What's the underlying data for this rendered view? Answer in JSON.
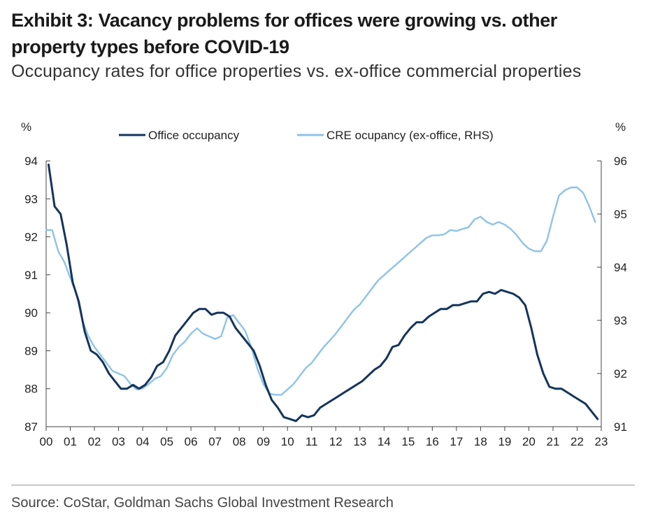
{
  "title": "Exhibit 3: Vacancy problems for offices were growing vs. other property types before COVID-19",
  "subtitle": "Occupancy rates for office properties vs. ex-office commercial properties",
  "source": "Source: CoStar, Goldman Sachs Global Investment Research",
  "chart_data": {
    "type": "line",
    "left_axis_unit": "%",
    "right_axis_unit": "%",
    "left_ylim": [
      87,
      94
    ],
    "right_ylim": [
      91,
      96
    ],
    "left_ticks": [
      "94",
      "93",
      "92",
      "91",
      "90",
      "89",
      "88",
      "87"
    ],
    "right_ticks": [
      "96",
      "95",
      "94",
      "93",
      "92",
      "91"
    ],
    "x_ticks": [
      "00",
      "01",
      "02",
      "03",
      "04",
      "05",
      "06",
      "07",
      "08",
      "09",
      "10",
      "11",
      "12",
      "13",
      "14",
      "15",
      "16",
      "17",
      "18",
      "19",
      "20",
      "21",
      "22",
      "23"
    ],
    "x_range": [
      0,
      23
    ],
    "colors": {
      "office": "#14345c",
      "cre": "#8ec3e8",
      "axis": "#444444"
    },
    "series": [
      {
        "name": "Office occupancy",
        "axis": "left",
        "x": [
          0.1,
          0.35,
          0.6,
          0.85,
          1.1,
          1.35,
          1.6,
          1.85,
          2.1,
          2.35,
          2.6,
          2.85,
          3.1,
          3.35,
          3.6,
          3.85,
          4.1,
          4.35,
          4.6,
          4.85,
          5.1,
          5.35,
          5.6,
          5.85,
          6.1,
          6.35,
          6.6,
          6.85,
          7.1,
          7.35,
          7.6,
          7.85,
          8.1,
          8.35,
          8.6,
          8.85,
          9.1,
          9.35,
          9.6,
          9.85,
          10.1,
          10.35,
          10.6,
          10.85,
          11.1,
          11.35,
          11.6,
          11.85,
          12.1,
          12.35,
          12.6,
          12.85,
          13.1,
          13.35,
          13.6,
          13.85,
          14.1,
          14.35,
          14.6,
          14.85,
          15.1,
          15.35,
          15.6,
          15.85,
          16.1,
          16.35,
          16.6,
          16.85,
          17.1,
          17.35,
          17.6,
          17.85,
          18.1,
          18.35,
          18.6,
          18.85,
          19.1,
          19.35,
          19.6,
          19.85,
          20.1,
          20.35,
          20.6,
          20.85,
          21.1,
          21.35,
          21.6,
          21.85,
          22.1,
          22.35,
          22.6,
          22.85
        ],
        "values": [
          93.9,
          92.8,
          92.6,
          91.8,
          90.8,
          90.3,
          89.5,
          89.0,
          88.9,
          88.7,
          88.4,
          88.2,
          88.0,
          88.0,
          88.1,
          88.0,
          88.1,
          88.3,
          88.6,
          88.7,
          89.0,
          89.4,
          89.6,
          89.8,
          90.0,
          90.1,
          90.1,
          89.95,
          90.0,
          90.0,
          89.9,
          89.6,
          89.4,
          89.2,
          89.0,
          88.6,
          88.1,
          87.7,
          87.5,
          87.25,
          87.2,
          87.15,
          87.3,
          87.25,
          87.3,
          87.5,
          87.6,
          87.7,
          87.8,
          87.9,
          88.0,
          88.1,
          88.2,
          88.35,
          88.5,
          88.6,
          88.8,
          89.1,
          89.15,
          89.4,
          89.6,
          89.75,
          89.75,
          89.9,
          90.0,
          90.1,
          90.1,
          90.2,
          90.2,
          90.25,
          90.3,
          90.3,
          90.5,
          90.55,
          90.5,
          90.6,
          90.55,
          90.5,
          90.4,
          90.2,
          89.6,
          88.9,
          88.4,
          88.05,
          88.0,
          88.0,
          87.9,
          87.8,
          87.7,
          87.6,
          87.4,
          87.2
        ]
      },
      {
        "name": "CRE ocupancy (ex-office, RHS)",
        "axis": "right",
        "x": [
          0.0,
          0.25,
          0.5,
          0.75,
          1.0,
          1.25,
          1.5,
          1.75,
          2.0,
          2.25,
          2.5,
          2.75,
          3.0,
          3.25,
          3.5,
          3.75,
          4.0,
          4.25,
          4.5,
          4.75,
          5.0,
          5.25,
          5.5,
          5.75,
          6.0,
          6.25,
          6.5,
          6.75,
          7.0,
          7.25,
          7.5,
          7.75,
          8.0,
          8.25,
          8.5,
          8.75,
          9.0,
          9.25,
          9.5,
          9.75,
          10.0,
          10.25,
          10.5,
          10.75,
          11.0,
          11.25,
          11.5,
          11.75,
          12.0,
          12.25,
          12.5,
          12.75,
          13.0,
          13.25,
          13.5,
          13.75,
          14.0,
          14.25,
          14.5,
          14.75,
          15.0,
          15.25,
          15.5,
          15.75,
          16.0,
          16.25,
          16.5,
          16.75,
          17.0,
          17.25,
          17.5,
          17.75,
          18.0,
          18.25,
          18.5,
          18.75,
          19.0,
          19.25,
          19.5,
          19.75,
          20.0,
          20.25,
          20.5,
          20.75,
          21.0,
          21.25,
          21.5,
          21.75,
          22.0,
          22.25,
          22.5,
          22.75
        ],
        "values": [
          94.7,
          94.7,
          94.3,
          94.1,
          93.8,
          93.5,
          93.0,
          92.7,
          92.5,
          92.35,
          92.2,
          92.05,
          92.0,
          91.95,
          91.8,
          91.7,
          91.72,
          91.8,
          91.9,
          91.95,
          92.1,
          92.35,
          92.5,
          92.6,
          92.75,
          92.85,
          92.75,
          92.7,
          92.65,
          92.7,
          93.05,
          93.1,
          92.95,
          92.8,
          92.5,
          92.1,
          91.8,
          91.62,
          91.6,
          91.6,
          91.7,
          91.8,
          91.95,
          92.1,
          92.2,
          92.35,
          92.5,
          92.62,
          92.75,
          92.9,
          93.05,
          93.2,
          93.3,
          93.45,
          93.6,
          93.75,
          93.85,
          93.95,
          94.05,
          94.15,
          94.25,
          94.35,
          94.45,
          94.55,
          94.6,
          94.6,
          94.62,
          94.7,
          94.68,
          94.72,
          94.75,
          94.9,
          94.95,
          94.85,
          94.8,
          94.85,
          94.8,
          94.72,
          94.6,
          94.45,
          94.35,
          94.3,
          94.3,
          94.5,
          94.95,
          95.35,
          95.45,
          95.5,
          95.5,
          95.4,
          95.15,
          94.85
        ]
      }
    ]
  }
}
